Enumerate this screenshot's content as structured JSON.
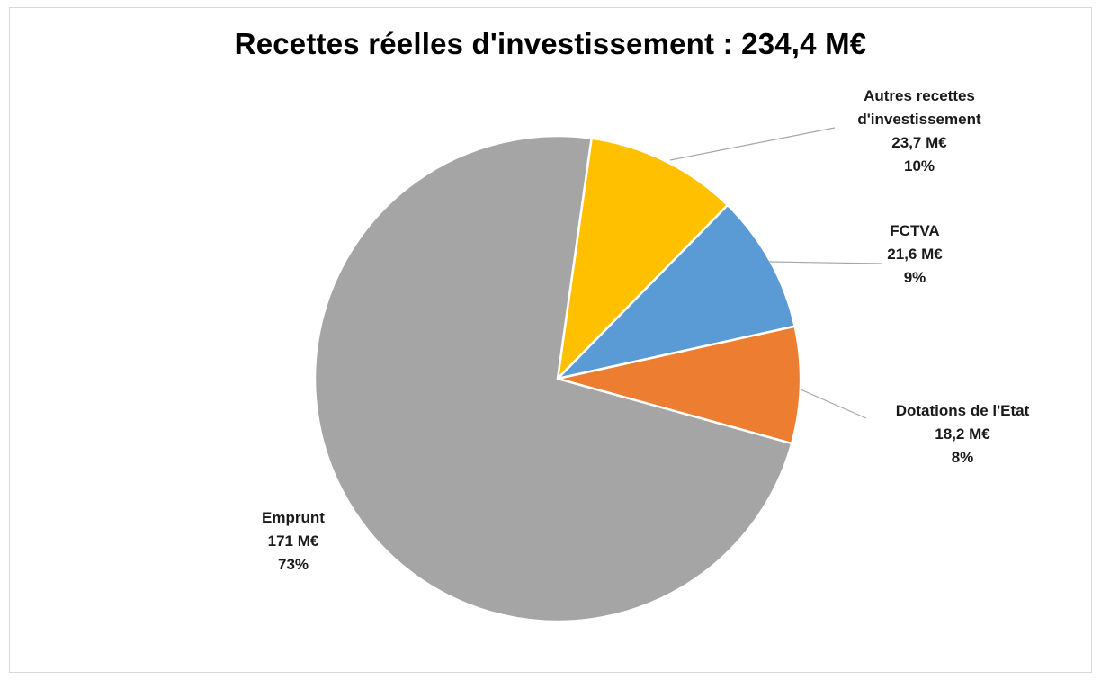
{
  "chart_data": {
    "type": "pie",
    "title": "Recettes réelles d'investissement : 234,4 M€",
    "slices": [
      {
        "name_lines": [
          "Autres recettes",
          "d'investissement"
        ],
        "value": 23.7,
        "value_label": "23,7 M€",
        "pct_label": "10%",
        "color": "#ffc000"
      },
      {
        "name_lines": [
          "FCTVA"
        ],
        "value": 21.6,
        "value_label": "21,6 M€",
        "pct_label": "9%",
        "color": "#5b9bd5"
      },
      {
        "name_lines": [
          "Dotations de l'Etat"
        ],
        "value": 18.2,
        "value_label": "18,2 M€",
        "pct_label": "8%",
        "color": "#ed7d31"
      },
      {
        "name_lines": [
          "Emprunt"
        ],
        "value": 171,
        "value_label": "171 M€",
        "pct_label": "73%",
        "color": "#a5a5a5"
      }
    ]
  }
}
